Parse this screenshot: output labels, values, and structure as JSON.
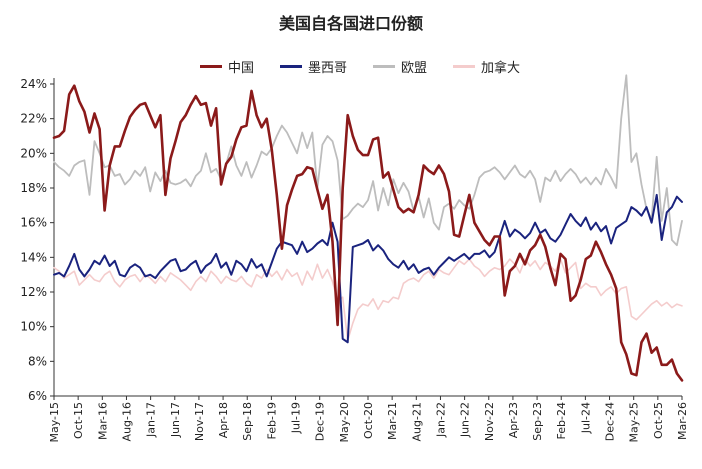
{
  "chart_data": {
    "type": "line",
    "title": "美国自各国进口份额",
    "xlabel": "",
    "ylabel": "",
    "ylim": [
      6,
      24
    ],
    "y_ticks": [
      "6%",
      "8%",
      "10%",
      "12%",
      "14%",
      "16%",
      "18%",
      "20%",
      "22%",
      "24%"
    ],
    "x_start": "May-15",
    "x_end": "Mar-26",
    "x_ticks": [
      "May-15",
      "Oct-15",
      "Mar-16",
      "Aug-16",
      "Jan-17",
      "Jun-17",
      "Nov-17",
      "Apr-18",
      "Sep-18",
      "Feb-19",
      "Jul-19",
      "Dec-19",
      "May-20",
      "Oct-20",
      "Mar-21",
      "Aug-21",
      "Jan-22",
      "Jun-22",
      "Nov-22",
      "Apr-23",
      "Sep-23",
      "Feb-24",
      "Jul-24",
      "Dec-24",
      "May-25",
      "Oct-25",
      "Mar-26"
    ],
    "legend_position": "top",
    "grid": false,
    "series": [
      {
        "name": "中国",
        "color": "#8b1a1a",
        "values": [
          20.9,
          21.0,
          21.3,
          23.4,
          23.9,
          23.0,
          22.4,
          21.2,
          22.3,
          21.4,
          16.7,
          19.3,
          20.4,
          20.4,
          21.3,
          22.1,
          22.5,
          22.8,
          22.9,
          22.2,
          21.5,
          22.2,
          17.6,
          19.7,
          20.7,
          21.8,
          22.2,
          22.8,
          23.3,
          22.8,
          22.9,
          21.6,
          22.6,
          18.2,
          19.4,
          19.8,
          20.8,
          21.5,
          21.6,
          23.6,
          22.2,
          21.5,
          22.0,
          20.2,
          17.6,
          14.5,
          17.0,
          17.9,
          18.7,
          18.8,
          19.2,
          19.1,
          17.9,
          16.8,
          17.6,
          14.9,
          10.1,
          18.0,
          22.2,
          21.0,
          20.2,
          19.9,
          19.9,
          20.8,
          20.9,
          18.6,
          18.9,
          17.9,
          16.9,
          16.6,
          16.8,
          16.6,
          17.6,
          19.3,
          19.0,
          18.8,
          19.3,
          18.8,
          17.8,
          15.3,
          15.2,
          16.4,
          17.6,
          16.0,
          15.5,
          15.0,
          14.7,
          15.2,
          15.2,
          11.8,
          13.2,
          13.5,
          14.2,
          13.6,
          14.4,
          14.7,
          15.3,
          14.6,
          13.4,
          12.4,
          14.2,
          13.9,
          11.5,
          11.8,
          12.7,
          13.9,
          14.1,
          14.9,
          14.3,
          13.6,
          13.0,
          12.2,
          9.1,
          8.4,
          7.3,
          7.2,
          9.1,
          9.6,
          8.5,
          8.8,
          7.8,
          7.8,
          8.1,
          7.3,
          6.9
        ]
      },
      {
        "name": "墨西哥",
        "color": "#1a237e",
        "values": [
          13.0,
          13.1,
          12.9,
          13.5,
          14.2,
          13.3,
          12.9,
          13.3,
          13.8,
          13.6,
          14.1,
          13.5,
          13.8,
          13.0,
          12.9,
          13.4,
          13.6,
          13.4,
          12.9,
          13.0,
          12.8,
          13.2,
          13.5,
          13.8,
          13.9,
          13.2,
          13.3,
          13.6,
          13.8,
          13.1,
          13.5,
          13.7,
          14.2,
          13.4,
          13.7,
          13.0,
          13.8,
          13.6,
          13.2,
          13.9,
          13.4,
          13.6,
          12.9,
          13.7,
          14.5,
          14.9,
          14.8,
          14.7,
          14.2,
          14.9,
          14.3,
          14.5,
          14.8,
          15.0,
          14.7,
          16.0,
          14.9,
          9.3,
          9.1,
          14.6,
          14.7,
          14.8,
          15.0,
          14.4,
          14.7,
          14.4,
          13.9,
          13.6,
          13.4,
          13.8,
          13.3,
          13.6,
          13.1,
          13.3,
          13.4,
          13.0,
          13.4,
          13.7,
          14.0,
          13.8,
          14.0,
          14.2,
          13.9,
          14.2,
          14.2,
          14.4,
          14.0,
          14.3,
          15.2,
          16.1,
          15.2,
          15.6,
          15.4,
          15.1,
          15.4,
          16.0,
          15.4,
          15.6,
          15.1,
          14.9,
          15.3,
          15.9,
          16.5,
          16.1,
          15.8,
          16.3,
          15.6,
          16.0,
          15.5,
          15.8,
          14.8,
          15.7,
          15.9,
          16.1,
          16.9,
          16.7,
          16.4,
          16.9,
          16.0,
          17.6,
          15.0,
          16.6,
          16.9,
          17.5,
          17.2
        ]
      },
      {
        "name": "欧盟",
        "color": "#bdbdbd",
        "values": [
          19.5,
          19.2,
          19.0,
          18.7,
          19.3,
          19.5,
          19.6,
          17.6,
          20.7,
          20.0,
          19.2,
          19.3,
          18.7,
          18.8,
          18.2,
          18.5,
          19.0,
          18.7,
          19.2,
          17.8,
          18.9,
          18.4,
          19.0,
          18.3,
          18.2,
          18.3,
          18.5,
          18.1,
          18.7,
          19.0,
          20.0,
          18.9,
          19.1,
          18.5,
          19.4,
          20.4,
          19.3,
          18.7,
          19.5,
          18.6,
          19.3,
          20.1,
          19.9,
          20.3,
          21.0,
          21.6,
          21.2,
          20.6,
          20.0,
          21.2,
          20.3,
          21.2,
          18.0,
          20.5,
          21.0,
          20.7,
          19.6,
          16.2,
          16.4,
          16.8,
          17.1,
          16.9,
          17.3,
          18.4,
          16.7,
          18.0,
          17.0,
          18.5,
          17.7,
          18.3,
          17.8,
          16.7,
          17.5,
          16.3,
          17.4,
          16.0,
          15.6,
          16.9,
          17.1,
          16.8,
          17.3,
          17.0,
          16.8,
          17.6,
          18.6,
          18.9,
          19.0,
          19.2,
          18.9,
          18.5,
          18.9,
          19.3,
          18.8,
          18.6,
          19.0,
          18.5,
          17.2,
          18.6,
          18.4,
          19.0,
          18.4,
          18.8,
          19.1,
          18.8,
          18.3,
          18.6,
          18.2,
          18.6,
          18.2,
          19.1,
          18.6,
          18.0,
          22.0,
          24.5,
          19.5,
          20.0,
          18.2,
          16.8,
          16.2,
          19.8,
          16.1,
          18.0,
          15.0,
          14.7,
          16.1
        ]
      },
      {
        "name": "加拿大",
        "color": "#f4cccc",
        "values": [
          13.4,
          13.2,
          12.8,
          13.0,
          13.2,
          12.4,
          12.7,
          13.0,
          12.7,
          12.6,
          13.0,
          13.2,
          12.6,
          12.3,
          12.7,
          12.9,
          13.0,
          12.6,
          13.0,
          12.8,
          12.5,
          12.9,
          12.6,
          13.1,
          12.9,
          12.7,
          12.4,
          12.1,
          12.6,
          12.9,
          12.6,
          13.2,
          12.9,
          12.5,
          12.9,
          12.7,
          12.6,
          12.9,
          12.5,
          12.3,
          13.0,
          12.8,
          13.3,
          12.9,
          13.2,
          12.7,
          13.3,
          12.9,
          13.1,
          12.4,
          13.2,
          12.7,
          13.6,
          12.8,
          13.3,
          12.6,
          11.5,
          11.7,
          9.2,
          10.2,
          11.0,
          11.3,
          11.2,
          11.6,
          11.0,
          11.5,
          11.4,
          11.7,
          11.6,
          12.5,
          12.7,
          12.8,
          12.6,
          13.0,
          13.2,
          12.8,
          13.3,
          13.1,
          13.0,
          13.4,
          13.8,
          13.6,
          13.9,
          13.5,
          13.3,
          12.9,
          13.2,
          13.4,
          13.3,
          13.5,
          13.9,
          13.6,
          13.1,
          13.9,
          13.5,
          13.8,
          13.3,
          13.7,
          13.5,
          13.2,
          13.9,
          13.1,
          13.4,
          13.7,
          12.2,
          12.5,
          12.3,
          12.3,
          11.8,
          12.1,
          12.3,
          11.9,
          12.2,
          12.3,
          10.6,
          10.4,
          10.7,
          11.0,
          11.3,
          11.5,
          11.2,
          11.4,
          11.1,
          11.3,
          11.2
        ]
      }
    ]
  }
}
